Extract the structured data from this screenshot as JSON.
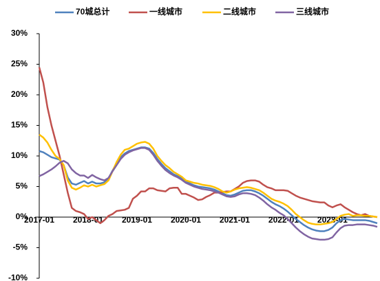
{
  "chart_data": {
    "type": "line",
    "categories": [
      "2017-01",
      null,
      null,
      null,
      null,
      null,
      null,
      null,
      null,
      null,
      null,
      null,
      "2018-01",
      null,
      null,
      null,
      null,
      null,
      null,
      null,
      null,
      null,
      null,
      null,
      "2019-01",
      null,
      null,
      null,
      null,
      null,
      null,
      null,
      null,
      null,
      null,
      null,
      "2020-01",
      null,
      null,
      null,
      null,
      null,
      null,
      null,
      null,
      null,
      null,
      null,
      "2021-01",
      null,
      null,
      null,
      null,
      null,
      null,
      null,
      null,
      null,
      null,
      null,
      "2022-01",
      null,
      null,
      null,
      null,
      null,
      null,
      null,
      null,
      null,
      null,
      null,
      "2023-01",
      null,
      null,
      null,
      null,
      null,
      null,
      null,
      null,
      null,
      null,
      null
    ],
    "series": [
      {
        "name": "70城总计",
        "color": "#4f81bd",
        "values": [
          10.8,
          10.6,
          10.2,
          9.8,
          9.6,
          9.4,
          8.5,
          6.5,
          5.5,
          5.3,
          5.6,
          5.9,
          5.5,
          5.8,
          5.5,
          5.5,
          5.7,
          6.3,
          7.6,
          8.8,
          9.8,
          10.4,
          10.8,
          11,
          11.2,
          11.4,
          11.4,
          11.2,
          10.5,
          9.5,
          8.7,
          8,
          7.5,
          7,
          6.7,
          6.3,
          5.8,
          5.5,
          5.2,
          5.0,
          4.9,
          4.8,
          4.7,
          4.5,
          4.2,
          3.9,
          3.6,
          3.5,
          3.7,
          4,
          4.3,
          4.4,
          4.4,
          4.2,
          3.9,
          3.5,
          3.0,
          2.5,
          2.1,
          1.8,
          1.4,
          0.9,
          0.3,
          -0.3,
          -0.8,
          -1.3,
          -1.7,
          -2,
          -2.2,
          -2.3,
          -2.3,
          -2.1,
          -1.7,
          -1.0,
          -0.5,
          -0.3,
          -0.4,
          -0.5,
          -0.5,
          -0.5,
          -0.5,
          -0.6,
          -0.8,
          -1.0
        ]
      },
      {
        "name": "一线城市",
        "color": "#c0504d",
        "values": [
          24.5,
          22,
          18,
          15,
          12.5,
          10,
          7,
          4,
          1.5,
          1,
          0.8,
          0.5,
          -0.3,
          0,
          -0.5,
          -1,
          -0.5,
          0.2,
          0.5,
          1,
          1.1,
          1.2,
          1.5,
          3,
          3.5,
          4.2,
          4.2,
          4.7,
          4.7,
          4.4,
          4.3,
          4.2,
          4.7,
          4.8,
          4.8,
          3.8,
          3.8,
          3.5,
          3.2,
          2.8,
          2.9,
          3.3,
          3.6,
          4,
          4,
          4.1,
          4.2,
          4.2,
          4.6,
          5.0,
          5.6,
          5.9,
          6.0,
          6.0,
          5.8,
          5.3,
          4.9,
          4.7,
          4.4,
          4.4,
          4.4,
          4.3,
          3.9,
          3.5,
          3.2,
          3.0,
          2.8,
          2.6,
          2.5,
          2.4,
          2.4,
          1.9,
          1.6,
          1.9,
          2.1,
          1.6,
          1.2,
          0.8,
          0.5,
          0.3,
          0.5,
          0.2,
          0.1,
          0.0
        ]
      },
      {
        "name": "二线城市",
        "color": "#ffc000",
        "values": [
          13.5,
          13,
          12.2,
          11,
          10,
          9.5,
          8.5,
          6,
          4.8,
          4.5,
          4.8,
          5.2,
          5.0,
          5.3,
          5.0,
          5.2,
          5.4,
          6,
          7.5,
          9,
          10.2,
          11,
          11.2,
          11.6,
          12,
          12.2,
          12.3,
          12,
          11.2,
          10,
          9.2,
          8.5,
          8,
          7.4,
          7,
          6.6,
          6,
          5.8,
          5.6,
          5.5,
          5.3,
          5.2,
          5.1,
          4.9,
          4.6,
          4.2,
          4,
          4.2,
          4.5,
          4.7,
          4.8,
          4.9,
          4.8,
          4.6,
          4.4,
          4,
          3.5,
          3,
          2.7,
          2.5,
          2.2,
          1.8,
          1.2,
          0.5,
          0,
          -0.5,
          -0.9,
          -1.1,
          -1.2,
          -1.2,
          -1.1,
          -1.0,
          -0.8,
          -0.3,
          0.2,
          0.4,
          0.5,
          0.2,
          0.3,
          0.3,
          0.2,
          0.2,
          0.1,
          0.0
        ]
      },
      {
        "name": "三线城市",
        "color": "#8064a2",
        "values": [
          6.7,
          7.0,
          7.4,
          7.8,
          8.3,
          8.9,
          9.2,
          8.8,
          7.8,
          7.2,
          6.8,
          6.8,
          6.4,
          6.9,
          6.5,
          6.2,
          6.0,
          6.4,
          7.5,
          8.5,
          9.5,
          10.2,
          10.6,
          10.9,
          11.1,
          11.3,
          11.3,
          11.0,
          10.2,
          9.2,
          8.4,
          7.7,
          7.2,
          6.8,
          6.5,
          6.1,
          5.6,
          5.3,
          5.0,
          4.8,
          4.6,
          4.5,
          4.4,
          4.2,
          4.0,
          3.7,
          3.4,
          3.3,
          3.4,
          3.7,
          3.9,
          3.9,
          3.8,
          3.6,
          3.2,
          2.7,
          2.1,
          1.6,
          1.2,
          0.7,
          0.3,
          -0.3,
          -1.0,
          -1.7,
          -2.3,
          -2.8,
          -3.2,
          -3.5,
          -3.6,
          -3.7,
          -3.7,
          -3.6,
          -3.3,
          -2.5,
          -1.8,
          -1.4,
          -1.3,
          -1.3,
          -1.2,
          -1.2,
          -1.2,
          -1.3,
          -1.4,
          -1.6
        ]
      }
    ],
    "ylim": [
      -10,
      30
    ],
    "yticks": [
      {
        "value": -10,
        "label": "-10%"
      },
      {
        "value": -5,
        "label": "-5%"
      },
      {
        "value": 0,
        "label": "0%"
      },
      {
        "value": 5,
        "label": "5%"
      },
      {
        "value": 10,
        "label": "10%"
      },
      {
        "value": 15,
        "label": "15%"
      },
      {
        "value": 20,
        "label": "20%"
      },
      {
        "value": 25,
        "label": "25%"
      },
      {
        "value": 30,
        "label": "30%"
      }
    ],
    "legend": "top",
    "grid": false
  }
}
